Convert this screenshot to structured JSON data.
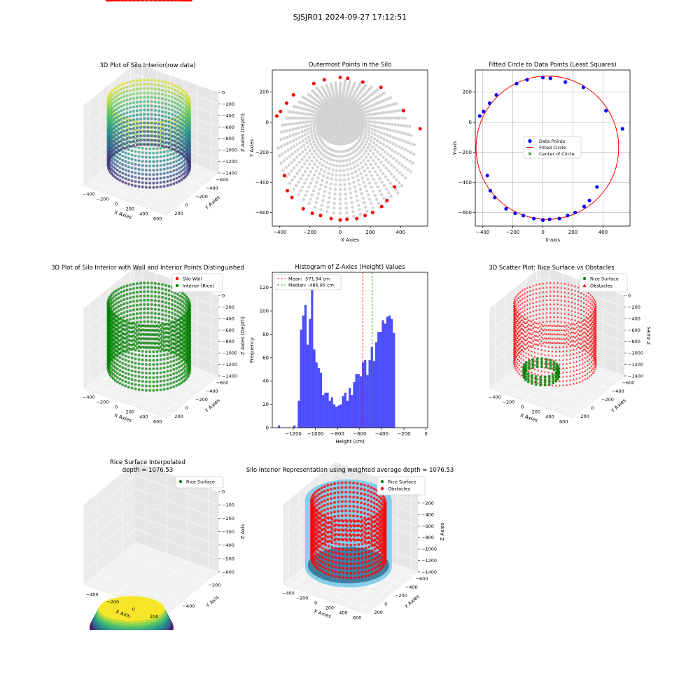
{
  "suptitle": "SJSJR01 2024-09-27 17:12:51",
  "colors": {
    "scatter_grey": "#d3d3d3",
    "outer_red": "#ff0000",
    "blue": "#0000ff",
    "green": "#008000",
    "hist_blue": "#0000ff",
    "sky": "#87ceeb"
  },
  "chart_data": [
    {
      "id": "raw3d",
      "type": "scatter",
      "projection": "3d",
      "title": "3D Plot of Silo Interior(row data)",
      "xlabel": "X Axies",
      "ylabel": "Y Axies",
      "zlabel": "Z Axies (Depth)",
      "xlim": [
        -500,
        600
      ],
      "ylim": [
        -700,
        300
      ],
      "zlim": [
        -1500,
        0
      ],
      "xticks": [
        "−400",
        "−200",
        "0",
        "200",
        "400",
        "600"
      ],
      "yticks": [
        "−600",
        "−400",
        "−200",
        "0",
        "200"
      ],
      "zticks": [
        "0",
        "−200",
        "−400",
        "−600",
        "−800",
        "−1000",
        "−1200",
        "−1400"
      ],
      "colormap": "viridis (colored by depth)",
      "silo_center": [
        50,
        -170
      ],
      "silo_radius": 470,
      "wall_top": -150,
      "floor": -1250
    },
    {
      "id": "outer",
      "type": "scatter",
      "title": "Outermost Points in the Silo",
      "xlabel": "X Axies",
      "ylabel": "Y Axies",
      "xlim": [
        -450,
        580
      ],
      "ylim": [
        -690,
        345
      ],
      "xticks": [
        -400,
        -200,
        0,
        200,
        400
      ],
      "yticks": [
        200,
        0,
        -200,
        -400,
        -600
      ],
      "series": [
        {
          "color": "#d3d3d3",
          "values": "polar scan grid of interior points (rings around origin, spokes to the wall)"
        },
        {
          "color": "#ff0000",
          "points": [
            [
              -420,
              40
            ],
            [
              -395,
              70
            ],
            [
              -355,
              125
            ],
            [
              -310,
              180
            ],
            [
              -175,
              255
            ],
            [
              -105,
              280
            ],
            [
              0,
              295
            ],
            [
              50,
              290
            ],
            [
              150,
              265
            ],
            [
              270,
              230
            ],
            [
              420,
              75
            ],
            [
              530,
              -45
            ],
            [
              360,
              -430
            ],
            [
              310,
              -520
            ],
            [
              275,
              -560
            ],
            [
              215,
              -600
            ],
            [
              165,
              -620
            ],
            [
              110,
              -640
            ],
            [
              45,
              -645
            ],
            [
              0,
              -650
            ],
            [
              -60,
              -640
            ],
            [
              -130,
              -620
            ],
            [
              -185,
              -605
            ],
            [
              -245,
              -575
            ],
            [
              -320,
              -500
            ],
            [
              -350,
              -455
            ],
            [
              -370,
              -355
            ]
          ]
        }
      ]
    },
    {
      "id": "fit",
      "type": "scatter",
      "title": "Fitted Circle to Data Points (Least Squares)",
      "xlabel": "X-axis",
      "ylabel": "Y-axis",
      "xlim": [
        -450,
        580
      ],
      "ylim": [
        -690,
        345
      ],
      "xticks": [
        -400,
        -200,
        0,
        200,
        400
      ],
      "yticks": [
        200,
        0,
        -200,
        -400,
        -600
      ],
      "legend": [
        "Data Points",
        "Fitted Circle",
        "Center of Circle"
      ],
      "legend_loc": "center",
      "circle": {
        "cx": 30,
        "cy": -170,
        "r": 475
      },
      "center_point": [
        30,
        -170
      ],
      "data_points": [
        [
          -420,
          40
        ],
        [
          -395,
          70
        ],
        [
          -355,
          125
        ],
        [
          -310,
          180
        ],
        [
          -175,
          255
        ],
        [
          -105,
          280
        ],
        [
          0,
          295
        ],
        [
          50,
          290
        ],
        [
          150,
          265
        ],
        [
          270,
          230
        ],
        [
          420,
          75
        ],
        [
          530,
          -45
        ],
        [
          360,
          -430
        ],
        [
          310,
          -520
        ],
        [
          275,
          -560
        ],
        [
          215,
          -600
        ],
        [
          165,
          -620
        ],
        [
          110,
          -640
        ],
        [
          45,
          -645
        ],
        [
          0,
          -650
        ],
        [
          -60,
          -640
        ],
        [
          -130,
          -620
        ],
        [
          -185,
          -605
        ],
        [
          -245,
          -575
        ],
        [
          -320,
          -500
        ],
        [
          -350,
          -455
        ],
        [
          -370,
          -355
        ]
      ]
    },
    {
      "id": "wall3d",
      "type": "scatter",
      "projection": "3d",
      "title": "3D Plot of Silo Interior with Wall and Interior Points Distinguished",
      "xlabel": "X Axies",
      "ylabel": "Y Axies",
      "zlabel": "Z Axies (Depth)",
      "xticks": [
        "−400",
        "−200",
        "0",
        "200",
        "400",
        "600"
      ],
      "yticks": [
        "−600",
        "−400",
        "−200",
        "0",
        "200"
      ],
      "zticks": [
        "0",
        "−200",
        "−400",
        "−600",
        "−800",
        "−1000",
        "−1200",
        "−1400"
      ],
      "legend": [
        {
          "label": "Silo Wall",
          "color": "#ff0000"
        },
        {
          "label": "Interior (Rice)",
          "color": "#008000"
        }
      ],
      "legend_loc": "top-right"
    },
    {
      "id": "hist",
      "type": "bar",
      "title": "Histogram of Z-Axies (Height) Values",
      "xlabel": "Height (cm)",
      "ylabel": "Frequency",
      "xlim": [
        -1390,
        15
      ],
      "ylim": [
        0,
        133
      ],
      "xticks": [
        -1200,
        -1000,
        -800,
        -600,
        -400,
        -200,
        0
      ],
      "yticks": [
        0,
        20,
        40,
        60,
        80,
        100,
        120
      ],
      "bin_start": -1340,
      "bin_width": 20,
      "values": [
        2,
        0,
        0,
        0,
        0,
        0,
        0,
        2,
        0,
        23,
        84,
        96,
        105,
        71,
        93,
        120,
        67,
        56,
        51,
        47,
        28,
        30,
        30,
        23,
        26,
        20,
        18,
        19,
        20,
        27,
        30,
        23,
        34,
        28,
        39,
        46,
        46,
        44,
        56,
        58,
        45,
        58,
        69,
        57,
        73,
        82,
        82,
        92,
        89,
        95,
        96,
        93,
        81
      ],
      "lines": [
        {
          "label": "Mean: -571.94 cm",
          "x": -571.94,
          "color": "#ff0000"
        },
        {
          "label": "Median: -486.95 cm",
          "x": -486.95,
          "color": "#008000"
        }
      ],
      "legend_loc": "top-left"
    },
    {
      "id": "scatter3d",
      "type": "scatter",
      "projection": "3d",
      "title": "3D Scatter Plot: Rice Surface vs Obstacles",
      "xlabel": "X Axies",
      "ylabel": "Y Axies",
      "zlabel": "Z Axies",
      "xticks": [
        "−400",
        "−200",
        "0",
        "200",
        "400",
        "600"
      ],
      "yticks": [
        "−600",
        "−400",
        "−200",
        "0",
        "200"
      ],
      "zticks": [
        "0",
        "−200",
        "−400",
        "−600",
        "−800",
        "−1000",
        "−1200",
        "−1400"
      ],
      "legend": [
        {
          "label": "Rice Surface",
          "color": "#008000"
        },
        {
          "label": "Obstacles",
          "color": "#ff0000"
        }
      ],
      "legend_loc": "top-right"
    },
    {
      "id": "interp",
      "type": "area",
      "projection": "3d",
      "title": "Rice Surface Interpolated",
      "subtitle": "depth = 1076.53",
      "xlabel": "X Axis",
      "ylabel": "Y Axis",
      "zlabel": "Z Axis",
      "xticks": [
        "−400",
        "−200",
        "0",
        "200"
      ],
      "yticks": [
        "−200",
        "−400"
      ],
      "zticks": [
        "0",
        "−100",
        "−200",
        "−300",
        "−400",
        "−500",
        "−600"
      ],
      "legend": [
        {
          "label": "Rice Surface",
          "color": "#008000"
        }
      ],
      "legend_loc": "top-right"
    },
    {
      "id": "rep3d",
      "type": "scatter",
      "projection": "3d",
      "title": "Silo Interior Representation using weighted average depth = 1076.53",
      "xlabel": "X Axies",
      "ylabel": "Y Axies",
      "zlabel": "Z Axies",
      "xticks": [
        "−400",
        "−200",
        "0",
        "200",
        "400",
        "600"
      ],
      "yticks": [
        "−600",
        "−400",
        "−200",
        "0",
        "200"
      ],
      "zticks": [
        "0",
        "−200",
        "−400",
        "−600",
        "−800",
        "−1000",
        "−1200",
        "−1400"
      ],
      "legend": [
        {
          "label": "Rice Surface",
          "color": "#008000"
        },
        {
          "label": "Obstacles",
          "color": "#ff0000"
        }
      ],
      "legend_loc": "top-center"
    }
  ]
}
